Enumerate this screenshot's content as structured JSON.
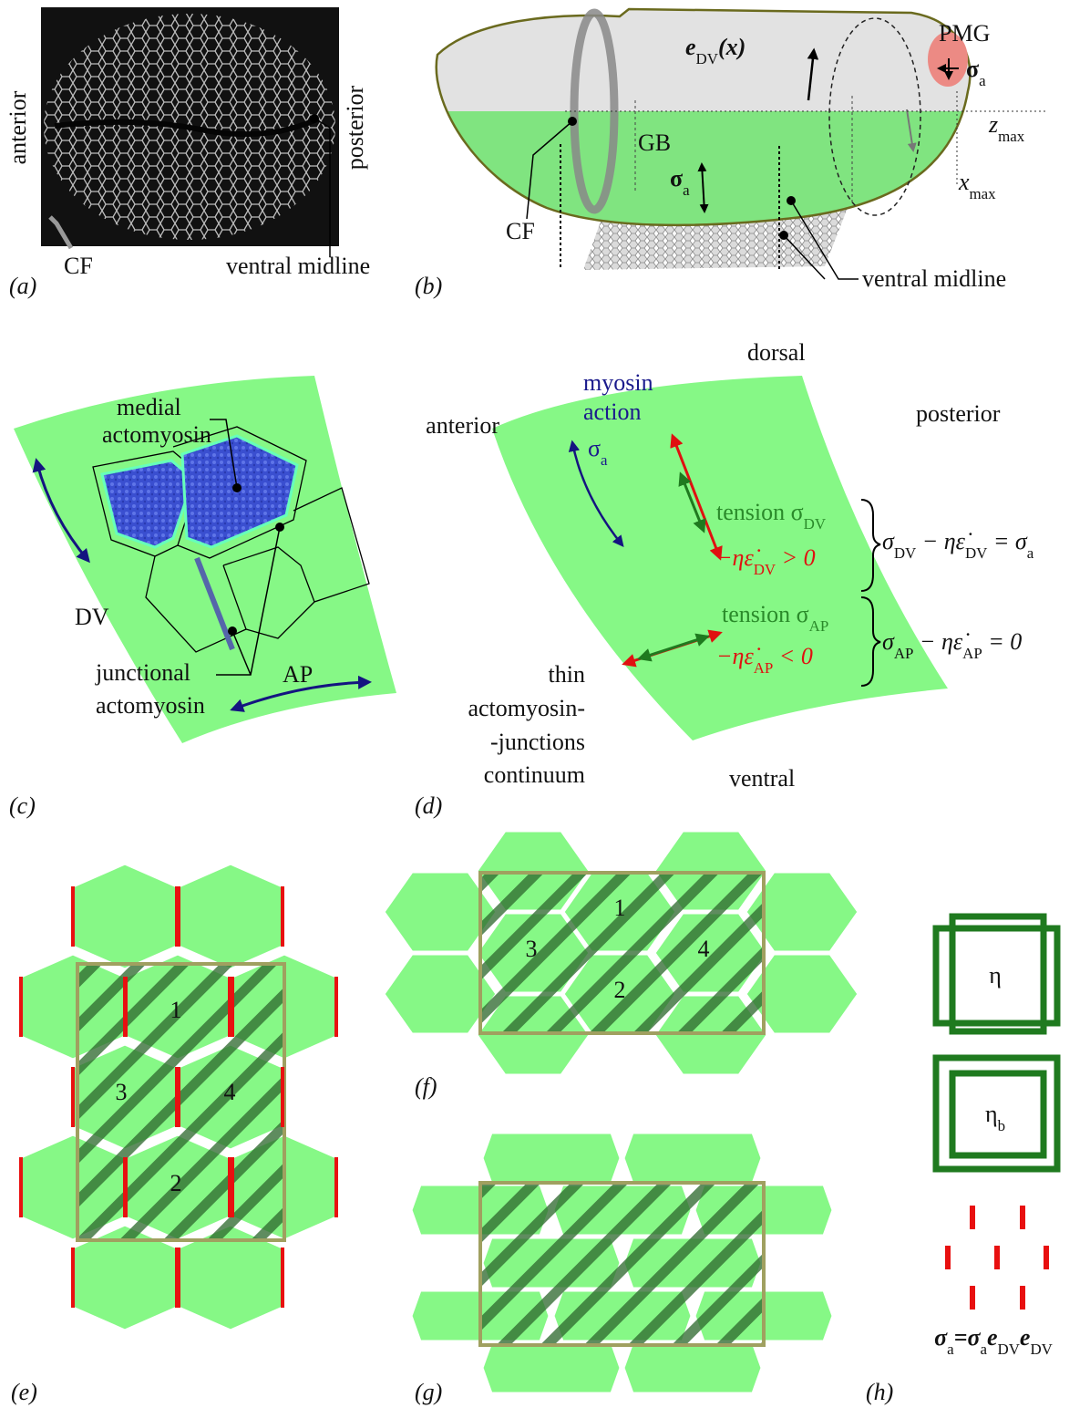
{
  "a": {
    "label": "(a)",
    "anterior": "anterior",
    "posterior": "posterior",
    "cf": "CF",
    "ventral_midline": "ventral midline"
  },
  "b": {
    "label": "(b)",
    "pmg": "PMG",
    "sigma_pmg": [
      "σ",
      "a"
    ],
    "e_dv": [
      "e",
      "DV",
      "(x)"
    ],
    "z_max": [
      "z",
      "max"
    ],
    "x_max": [
      "x",
      "max"
    ],
    "gb": "GB",
    "sigma_gb": [
      "σ",
      "a"
    ],
    "cf": "CF",
    "ventral_midline": "ventral midline"
  },
  "c": {
    "label": "(c)",
    "medial": [
      "medial",
      "actomyosin"
    ],
    "dv": "DV",
    "junctional": [
      "junctional",
      "actomyosin"
    ],
    "ap": "AP"
  },
  "d": {
    "label": "(d)",
    "dorsal": "dorsal",
    "myosin_action": [
      "myosin",
      "action"
    ],
    "anterior": "anterior",
    "posterior": "posterior",
    "sigma": [
      "σ",
      "a"
    ],
    "tension_dv": [
      "tension σ",
      "DV"
    ],
    "strain_dv": [
      "−ηε̇",
      "DV",
      " > 0"
    ],
    "eq_dv": [
      "σ",
      "DV",
      " − ηε̇",
      "DV",
      " = σ",
      "a"
    ],
    "tension_ap": [
      "tension σ",
      "AP"
    ],
    "strain_ap": [
      "−ηε̇",
      "AP",
      " < 0"
    ],
    "eq_ap": [
      "σ",
      "AP",
      " − ηε̇",
      "AP",
      " = 0"
    ],
    "continuum": [
      "thin",
      "actomyosin-",
      "-junctions",
      "continuum"
    ],
    "ventral": "ventral"
  },
  "e": {
    "label": "(e)",
    "cells": [
      "1",
      "3",
      "4",
      "2"
    ]
  },
  "f": {
    "label": "(f)",
    "cells": [
      "1",
      "3",
      "4",
      "2"
    ]
  },
  "g": {
    "label": "(g)"
  },
  "h": {
    "label": "(h)",
    "eta": "η",
    "eta_b": [
      "η",
      "b"
    ],
    "sigma_def": [
      "σ",
      "a",
      "=σ",
      "a",
      "e",
      "DV",
      "e",
      "DV"
    ]
  }
}
